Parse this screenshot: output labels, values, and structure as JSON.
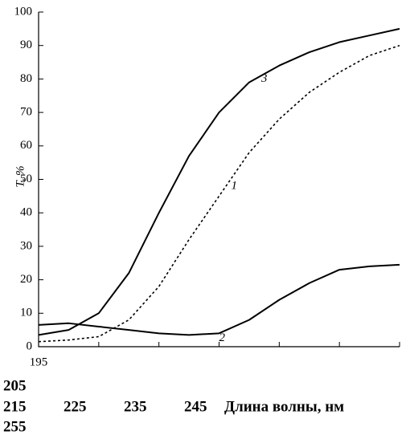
{
  "chart_data": {
    "type": "line",
    "y_label": "T, %",
    "x_label": "Длина волны, нм",
    "x": [
      195,
      200,
      205,
      210,
      215,
      220,
      225,
      230,
      235,
      240,
      245,
      250,
      255
    ],
    "series": [
      {
        "name": "1",
        "color": "#000000",
        "style": "dashed",
        "values": [
          1.5,
          2,
          3,
          8,
          18,
          32,
          45,
          58,
          68,
          76,
          82,
          87,
          90
        ]
      },
      {
        "name": "2",
        "color": "#000000",
        "style": "solid",
        "values": [
          6.5,
          7,
          6,
          5,
          4,
          3.5,
          4,
          8,
          14,
          19,
          23,
          24,
          24.5
        ]
      },
      {
        "name": "3",
        "color": "#000000",
        "style": "solid",
        "values": [
          3.5,
          5,
          10,
          22,
          40,
          57,
          70,
          79,
          84,
          88,
          91,
          93,
          95
        ]
      }
    ],
    "xlim": [
      195,
      255
    ],
    "xticks": [
      195,
      205,
      215,
      225,
      235,
      245,
      255
    ],
    "ylim": [
      0,
      100
    ],
    "yticks": [
      0,
      10,
      20,
      30,
      40,
      50,
      60,
      70,
      80,
      90,
      100
    ],
    "grid": false
  }
}
